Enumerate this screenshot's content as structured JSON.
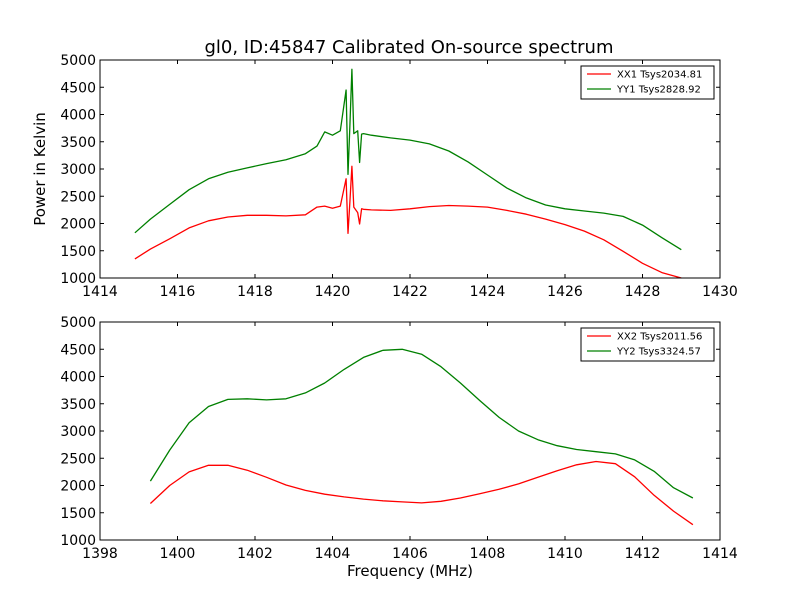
{
  "title": "gl0, ID:45847 Calibrated On-source spectrum",
  "chart_data": [
    {
      "type": "line",
      "ylabel": "Power in Kelvin",
      "xlabel": "",
      "xlim": [
        1414,
        1430
      ],
      "ylim": [
        1000,
        5000
      ],
      "xticks": [
        "1414",
        "1416",
        "1418",
        "1420",
        "1422",
        "1424",
        "1426",
        "1428",
        "1430"
      ],
      "yticks": [
        "1000",
        "1500",
        "2000",
        "2500",
        "3000",
        "3500",
        "4000",
        "4500",
        "5000"
      ],
      "legend_position": "top-right",
      "series": [
        {
          "name": "XX1 Tsys2034.81",
          "color": "#ff0000",
          "x": [
            1414.9,
            1415.3,
            1415.8,
            1416.3,
            1416.8,
            1417.3,
            1417.8,
            1418.3,
            1418.8,
            1419.3,
            1419.6,
            1419.8,
            1420.0,
            1420.2,
            1420.35,
            1420.4,
            1420.45,
            1420.5,
            1420.55,
            1420.65,
            1420.7,
            1420.75,
            1420.8,
            1421.0,
            1421.5,
            1422.0,
            1422.5,
            1423.0,
            1423.5,
            1424.0,
            1424.5,
            1425.0,
            1425.5,
            1426.0,
            1426.5,
            1427.0,
            1427.5,
            1428.0,
            1428.5,
            1429.0
          ],
          "values": [
            1350,
            1530,
            1720,
            1920,
            2050,
            2120,
            2150,
            2150,
            2140,
            2160,
            2300,
            2320,
            2280,
            2320,
            2820,
            1820,
            2400,
            3050,
            2300,
            2200,
            1990,
            2270,
            2260,
            2250,
            2240,
            2270,
            2310,
            2330,
            2320,
            2300,
            2240,
            2170,
            2080,
            1980,
            1860,
            1700,
            1490,
            1270,
            1100,
            1000
          ]
        },
        {
          "name": "YY1 Tsys2828.92",
          "color": "#008000",
          "x": [
            1414.9,
            1415.3,
            1415.8,
            1416.3,
            1416.8,
            1417.3,
            1417.8,
            1418.3,
            1418.8,
            1419.3,
            1419.6,
            1419.8,
            1420.0,
            1420.2,
            1420.35,
            1420.4,
            1420.45,
            1420.5,
            1420.55,
            1420.65,
            1420.7,
            1420.75,
            1420.8,
            1421.0,
            1421.5,
            1422.0,
            1422.5,
            1423.0,
            1423.5,
            1424.0,
            1424.5,
            1425.0,
            1425.5,
            1426.0,
            1426.5,
            1427.0,
            1427.5,
            1428.0,
            1428.5,
            1429.0
          ],
          "values": [
            1830,
            2080,
            2350,
            2620,
            2820,
            2940,
            3020,
            3100,
            3170,
            3280,
            3420,
            3680,
            3620,
            3700,
            4450,
            2900,
            3800,
            4830,
            3650,
            3700,
            3120,
            3640,
            3650,
            3620,
            3570,
            3530,
            3460,
            3330,
            3130,
            2890,
            2650,
            2470,
            2340,
            2270,
            2230,
            2190,
            2130,
            1970,
            1740,
            1520
          ]
        }
      ]
    },
    {
      "type": "line",
      "ylabel": "",
      "xlabel": "Frequency (MHz)",
      "xlim": [
        1398,
        1414
      ],
      "ylim": [
        1000,
        5000
      ],
      "xticks": [
        "1398",
        "1400",
        "1402",
        "1404",
        "1406",
        "1408",
        "1410",
        "1412",
        "1414"
      ],
      "yticks": [
        "1000",
        "1500",
        "2000",
        "2500",
        "3000",
        "3500",
        "4000",
        "4500",
        "5000"
      ],
      "legend_position": "top-right",
      "series": [
        {
          "name": "XX2 Tsys2011.56",
          "color": "#ff0000",
          "x": [
            1399.3,
            1399.8,
            1400.3,
            1400.8,
            1401.3,
            1401.8,
            1402.3,
            1402.8,
            1403.3,
            1403.8,
            1404.3,
            1404.8,
            1405.3,
            1405.8,
            1406.3,
            1406.8,
            1407.3,
            1407.8,
            1408.3,
            1408.8,
            1409.3,
            1409.8,
            1410.3,
            1410.8,
            1411.3,
            1411.8,
            1412.3,
            1412.8,
            1413.3
          ],
          "values": [
            1670,
            2000,
            2250,
            2370,
            2370,
            2280,
            2150,
            2010,
            1910,
            1840,
            1790,
            1750,
            1720,
            1700,
            1680,
            1710,
            1770,
            1850,
            1930,
            2030,
            2150,
            2270,
            2380,
            2440,
            2400,
            2160,
            1820,
            1530,
            1280
          ]
        },
        {
          "name": "YY2 Tsys3324.57",
          "color": "#008000",
          "x": [
            1399.3,
            1399.8,
            1400.3,
            1400.8,
            1401.3,
            1401.8,
            1402.3,
            1402.8,
            1403.3,
            1403.8,
            1404.3,
            1404.8,
            1405.3,
            1405.8,
            1406.3,
            1406.8,
            1407.3,
            1407.8,
            1408.3,
            1408.8,
            1409.3,
            1409.8,
            1410.3,
            1410.8,
            1411.3,
            1411.8,
            1412.3,
            1412.8,
            1413.3
          ],
          "values": [
            2080,
            2650,
            3150,
            3450,
            3580,
            3590,
            3570,
            3590,
            3700,
            3880,
            4130,
            4350,
            4480,
            4500,
            4410,
            4180,
            3880,
            3560,
            3250,
            3000,
            2840,
            2730,
            2660,
            2620,
            2580,
            2470,
            2260,
            1960,
            1770
          ]
        }
      ]
    }
  ]
}
